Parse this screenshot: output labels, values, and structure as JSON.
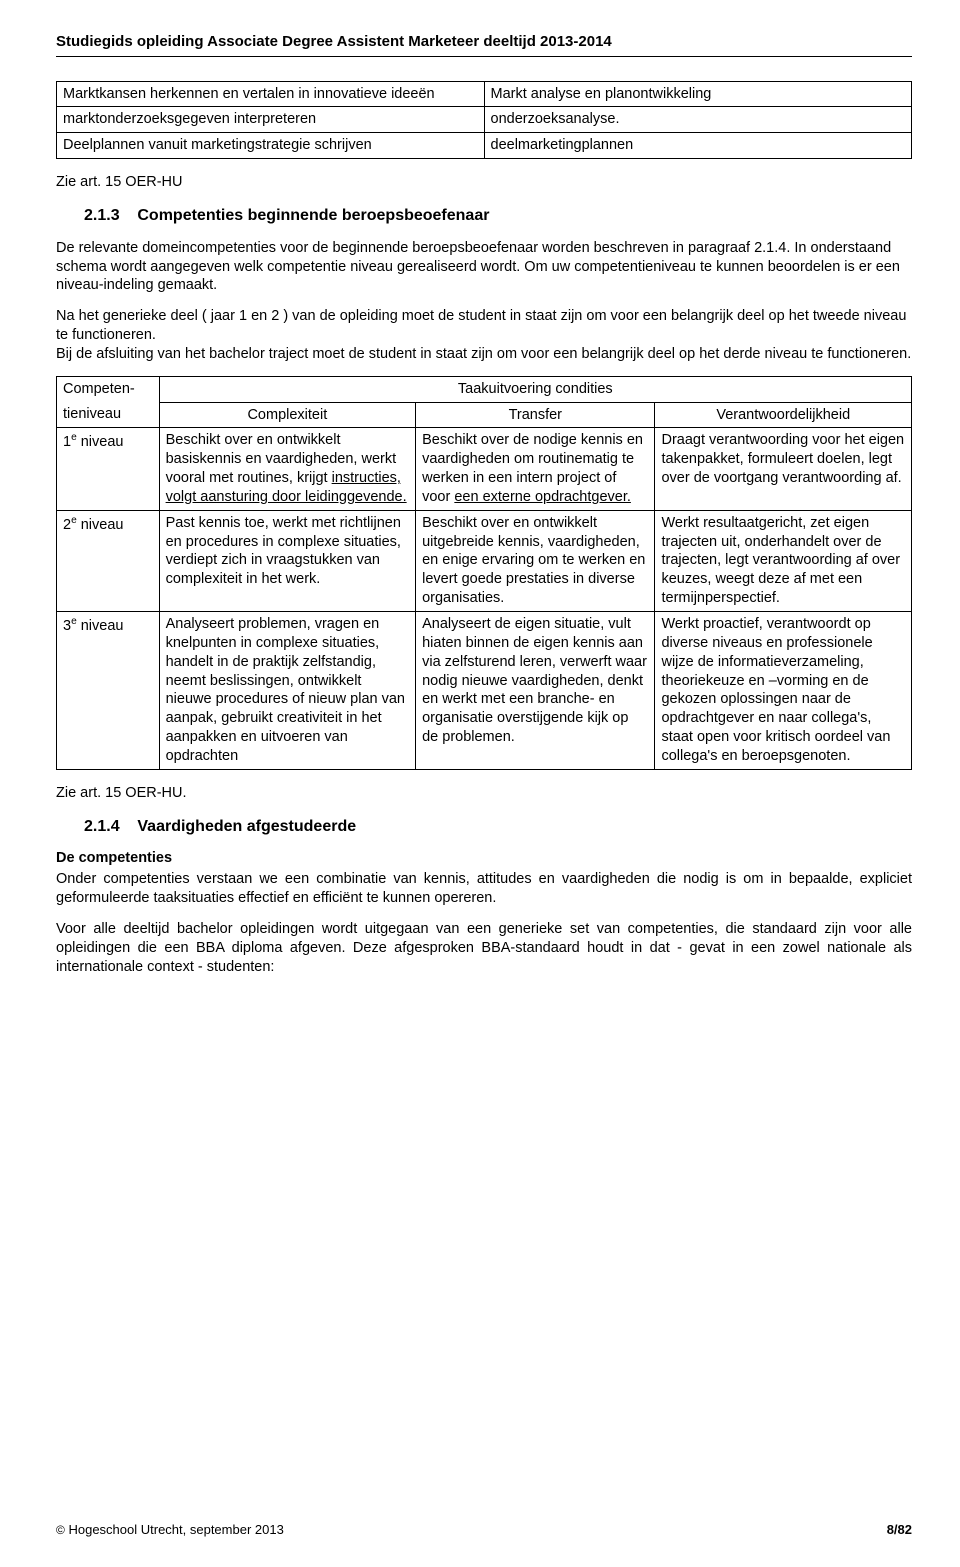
{
  "header": {
    "title": "Studiegids opleiding Associate Degree Assistent Marketeer deeltijd 2013-2014"
  },
  "mapping_table": {
    "rows": [
      [
        "Marktkansen herkennen en vertalen in innovatieve ideeën",
        "Markt analyse en planontwikkeling"
      ],
      [
        "marktonderzoeksgegeven interpreteren",
        "onderzoeksanalyse."
      ],
      [
        "Deelplannen vanuit marketingstrategie schrijven",
        "deelmarketingplannen"
      ]
    ]
  },
  "zie_art_1": "Zie art. 15 OER-HU",
  "section_213": {
    "number": "2.1.3",
    "title": "Competenties beginnende beroepsbeoefenaar",
    "p1": "De relevante domeincompetenties voor de beginnende beroepsbeoefenaar worden beschreven in paragraaf 2.1.4. In onderstaand schema wordt aangegeven welk competentie niveau gerealiseerd wordt. Om uw competentieniveau te kunnen beoordelen is er een niveau-indeling gemaakt.",
    "p2": "Na het generieke deel ( jaar 1 en 2 ) van de opleiding moet de student in staat zijn om voor een belangrijk deel op het tweede niveau te functioneren.",
    "p3": "Bij de afsluiting van het bachelor traject moet de student in staat zijn om voor een belangrijk deel op het derde niveau te functioneren."
  },
  "levels_table": {
    "top_left": "Competen-tieniveau",
    "top_colspan_header": "Taakuitvoering condities",
    "sub_headers": [
      "Complexiteit",
      "Transfer",
      "Verantwoordelijkheid"
    ],
    "rows": [
      {
        "level_sup": "e",
        "level_num": "1",
        "level_suffix": " niveau",
        "complexiteit_pre": "Beschikt over en ontwikkelt basiskennis en vaardigheden, werkt vooral met routines, krijgt ",
        "complexiteit_u": "instructies, volgt aansturing door leidinggevende.",
        "transfer_pre": "Beschikt over de nodige kennis en vaardigheden om routinematig te werken in een intern project of voor ",
        "transfer_u": "een externe opdrachtgever.",
        "verantw": "Draagt verantwoording voor het eigen takenpakket, formuleert doelen, legt over de voortgang verantwoording af."
      },
      {
        "level_sup": "e",
        "level_num": "2",
        "level_suffix": " niveau",
        "complexiteit_pre": "Past kennis toe, werkt met richtlijnen en procedures in complexe situaties, verdiept zich in vraagstukken van complexiteit in het werk.",
        "complexiteit_u": "",
        "transfer_pre": "Beschikt over en ontwikkelt uitgebreide kennis, vaardigheden, en enige ervaring om te werken en levert goede prestaties in diverse organisaties.",
        "transfer_u": "",
        "verantw": "Werkt resultaatgericht, zet eigen trajecten uit, onderhandelt over de trajecten, legt verantwoording af over keuzes, weegt deze af met een termijnperspectief."
      },
      {
        "level_sup": "e",
        "level_num": "3",
        "level_suffix": " niveau",
        "complexiteit_pre": "Analyseert problemen, vragen en knelpunten in complexe situaties, handelt in de praktijk zelfstandig, neemt beslissingen, ontwikkelt nieuwe procedures of nieuw plan van aanpak, gebruikt creativiteit in het aanpakken en uitvoeren van opdrachten",
        "complexiteit_u": "",
        "transfer_pre": "Analyseert de eigen situatie, vult hiaten binnen de eigen kennis aan via zelfsturend leren, verwerft waar nodig nieuwe vaardigheden, denkt en werkt met een branche- en organisatie overstijgende kijk op de problemen.",
        "transfer_u": "",
        "verantw": "Werkt proactief, verantwoordt op diverse niveaus en professionele wijze de informatieverzameling, theoriekeuze en –vorming en de gekozen oplossingen naar de opdrachtgever en naar collega's, staat open voor kritisch oordeel van collega's en beroepsgenoten."
      }
    ]
  },
  "zie_art_2": "Zie art. 15 OER-HU.",
  "section_214": {
    "number": "2.1.4",
    "title": "Vaardigheden afgestudeerde",
    "sub_heading": "De competenties",
    "p1": "Onder competenties verstaan we een combinatie van kennis, attitudes en vaardigheden die nodig is om in bepaalde, expliciet geformuleerde taaksituaties effectief en efficiënt te kunnen opereren.",
    "p2": "Voor alle deeltijd bachelor opleidingen wordt uitgegaan van een generieke set van competenties, die standaard zijn voor alle opleidingen die een BBA diploma afgeven. Deze afgesproken BBA-standaard houdt in dat - gevat in een zowel nationale als internationale context - studenten:"
  },
  "footer": {
    "left": "Hogeschool Utrecht, september 2013",
    "right": "8/82",
    "copyright": "©"
  }
}
